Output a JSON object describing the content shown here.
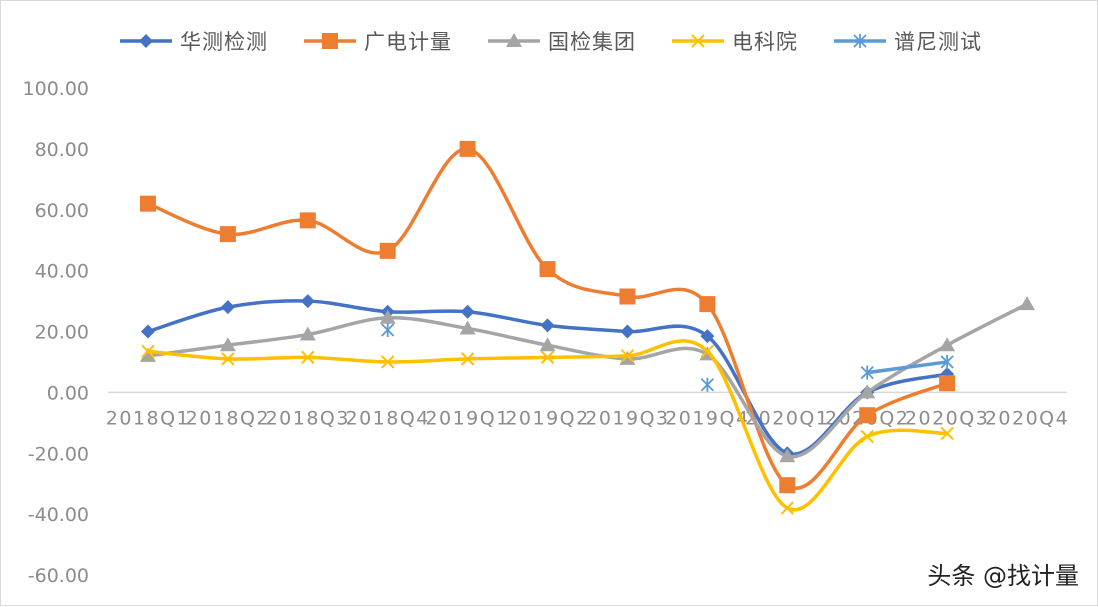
{
  "chart_data": {
    "type": "line",
    "categories": [
      "2018Q1",
      "2018Q2",
      "2018Q3",
      "2018Q4",
      "2019Q1",
      "2019Q2",
      "2019Q3",
      "2019Q4",
      "2020Q1",
      "2020Q2",
      "2020Q3",
      "2020Q4"
    ],
    "yticks": [
      "100.00",
      "80.00",
      "60.00",
      "40.00",
      "20.00",
      "0.00",
      "-20.00",
      "-40.00",
      "-60.00"
    ],
    "ylim": [
      -60,
      100
    ],
    "legend_position": "top",
    "grid": false,
    "series": [
      {
        "name": "华测检测",
        "color": "#4472C4",
        "marker": "diamond",
        "values": [
          20,
          28,
          30,
          26.5,
          26.5,
          22,
          20,
          18.5,
          -20,
          0,
          6,
          null
        ]
      },
      {
        "name": "广电计量",
        "color": "#ED7D31",
        "marker": "square",
        "values": [
          62,
          52,
          56.5,
          46.5,
          80,
          40.5,
          31.5,
          29,
          -30.5,
          -7.5,
          3,
          null
        ]
      },
      {
        "name": "国检集团",
        "color": "#A5A5A5",
        "marker": "triangle",
        "values": [
          12,
          15.5,
          19,
          24.5,
          21,
          15.5,
          11,
          12.5,
          -21,
          0,
          15.5,
          29
        ]
      },
      {
        "name": "电科院",
        "color": "#FFC000",
        "marker": "x",
        "values": [
          13.5,
          11,
          11.5,
          10,
          11,
          11.5,
          12,
          13.5,
          -38,
          -14.5,
          -13.5,
          null
        ]
      },
      {
        "name": "谱尼测试",
        "color": "#5B9BD5",
        "marker": "star",
        "values": [
          null,
          null,
          null,
          20.5,
          null,
          null,
          null,
          2.5,
          null,
          6.5,
          10,
          null
        ]
      }
    ]
  },
  "watermark": "头条 @找计量"
}
